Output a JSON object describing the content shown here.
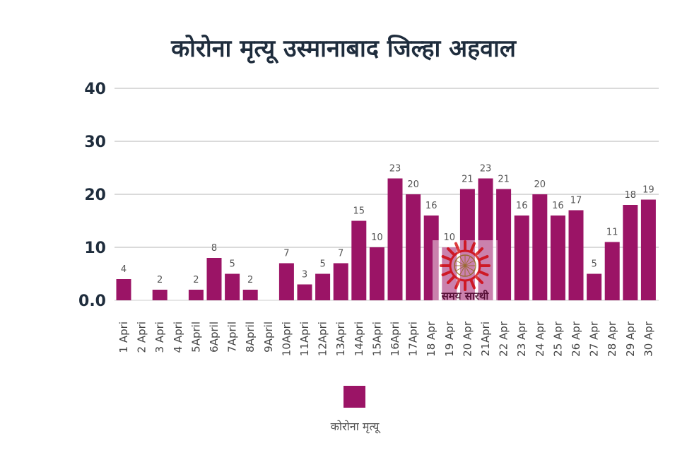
{
  "chart_data": {
    "type": "bar",
    "title": "कोरोना मृत्यू उस्मानाबाद जिल्हा अहवाल",
    "xlabel": "",
    "ylabel": "",
    "ylim": [
      0,
      40
    ],
    "yticks": [
      "0.0",
      "10",
      "20",
      "30",
      "40"
    ],
    "grid": true,
    "legend_position": "bottom",
    "categories": [
      "1 Apri",
      "2 Apri",
      "3 Apri",
      "4 Apri",
      "5April",
      "6April",
      "7April",
      "8April",
      "9April",
      "10Apri",
      "11Apri",
      "12Apri",
      "13Apri",
      "14Apri",
      "15Apri",
      "16Apri",
      "17Apri",
      "18 Apr",
      "19 Apr",
      "20 Apr",
      "21Apri",
      "22 Apr",
      "23 Apr",
      "24 Apr",
      "25 Apr",
      "26 Apr",
      "27 Apr",
      "28 Apr",
      "29 Apr",
      "30 Apr"
    ],
    "series": [
      {
        "name": "कोरोना मृत्यू",
        "color": "#9b1466",
        "values": [
          4,
          null,
          2,
          null,
          2,
          8,
          5,
          2,
          null,
          7,
          3,
          5,
          7,
          15,
          10,
          23,
          20,
          16,
          10,
          21,
          23,
          21,
          16,
          20,
          16,
          17,
          5,
          11,
          18,
          19
        ],
        "labels": [
          "4",
          "",
          "2",
          "",
          "2",
          "8",
          "5",
          "2",
          "",
          "7",
          "3",
          "5",
          "7",
          "15",
          "10",
          "23",
          "20",
          "16",
          "10",
          "21",
          "23",
          "21",
          "16",
          "20",
          "16",
          "17",
          "5",
          "11",
          "18",
          "19"
        ]
      }
    ]
  },
  "watermark": {
    "text": "समय सारथी",
    "sun_color": "#d81b1b"
  }
}
